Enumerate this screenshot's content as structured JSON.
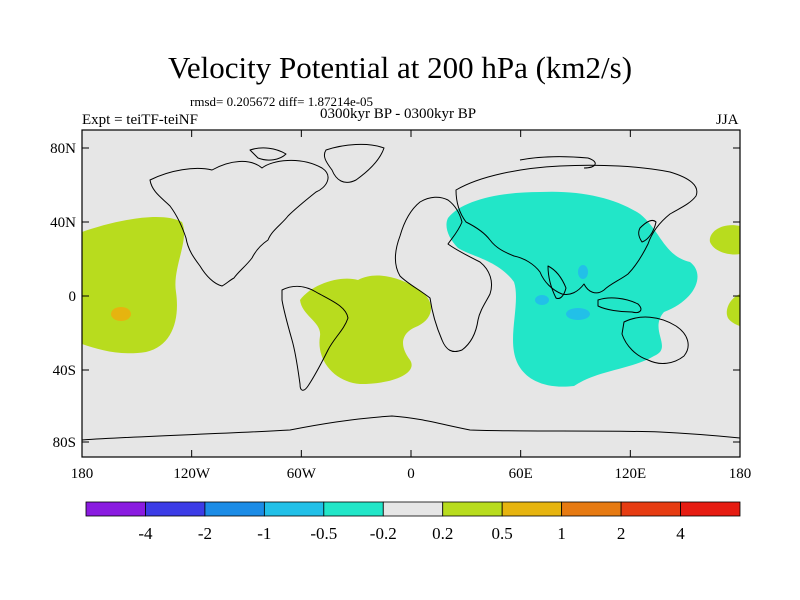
{
  "title": "Velocity Potential at 200 hPa (km2/s)",
  "stats": "rmsd= 0.205672 diff= 1.87214e-05",
  "left_label": "Expt = teiTF-teiNF",
  "center_label": "0300kyr BP - 0300kyr BP",
  "right_label": "JJA",
  "lat_ticks": [
    "80N",
    "40N",
    "0",
    "40S",
    "80S"
  ],
  "lon_ticks": [
    "180",
    "120W",
    "60W",
    "0",
    "60E",
    "120E",
    "180"
  ],
  "colorbar": {
    "colors": [
      "#8a1be0",
      "#3c3ce6",
      "#1c8ce6",
      "#22c0e8",
      "#22e6c8",
      "#e6e6e6",
      "#b8dc1e",
      "#e6b40f",
      "#e67a12",
      "#e63c12",
      "#e61c12"
    ],
    "labels": [
      "-4",
      "-2",
      "-1",
      "-0.5",
      "-0.2",
      "0.2",
      "0.5",
      "1",
      "2",
      "4"
    ]
  },
  "colors": {
    "background": "#e6e6e6",
    "positive": "#b8dc1e",
    "negative": "#22e6c8",
    "neg_strong": "#22c0e8",
    "pos_strong": "#e6b40f",
    "coast": "#000000"
  }
}
